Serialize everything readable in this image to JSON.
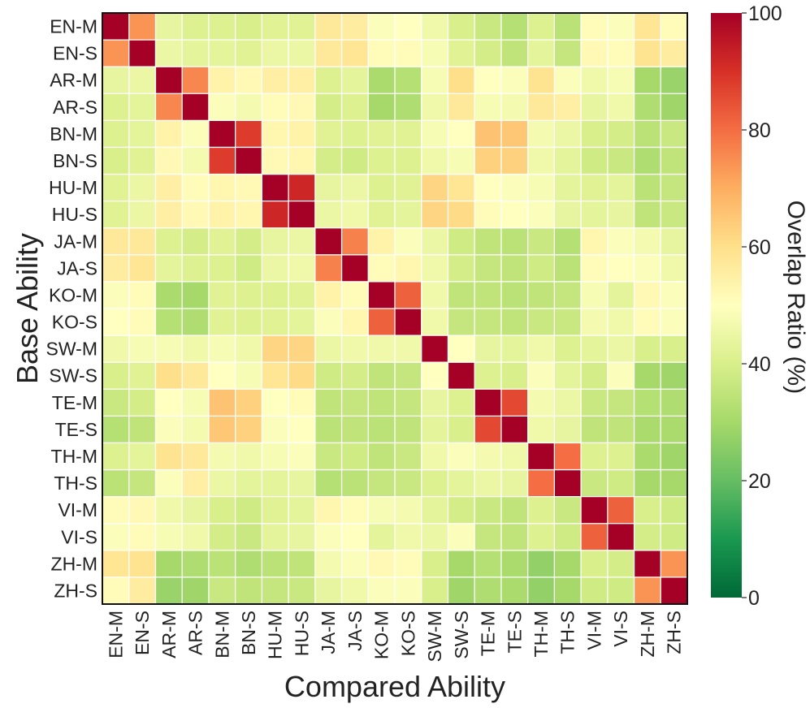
{
  "chart_data": {
    "type": "heatmap",
    "title": "",
    "xlabel": "Compared Ability",
    "ylabel": "Base Ability",
    "x_categories": [
      "EN-M",
      "EN-S",
      "AR-M",
      "AR-S",
      "BN-M",
      "BN-S",
      "HU-M",
      "HU-S",
      "JA-M",
      "JA-S",
      "KO-M",
      "KO-S",
      "SW-M",
      "SW-S",
      "TE-M",
      "TE-S",
      "TH-M",
      "TH-S",
      "VI-M",
      "VI-S",
      "ZH-M",
      "ZH-S"
    ],
    "y_categories": [
      "EN-M",
      "EN-S",
      "AR-M",
      "AR-S",
      "BN-M",
      "BN-S",
      "HU-M",
      "HU-S",
      "JA-M",
      "JA-S",
      "KO-M",
      "KO-S",
      "SW-M",
      "SW-S",
      "TE-M",
      "TE-S",
      "TH-M",
      "TH-S",
      "VI-M",
      "VI-S",
      "ZH-M",
      "ZH-S"
    ],
    "values": [
      [
        100,
        74,
        44,
        41,
        41,
        40,
        42,
        42,
        57,
        56,
        49,
        50,
        46,
        40,
        37,
        33,
        41,
        34,
        51,
        49,
        58,
        51
      ],
      [
        74,
        100,
        45,
        43,
        43,
        42,
        45,
        45,
        57,
        58,
        51,
        51,
        48,
        42,
        39,
        35,
        43,
        36,
        52,
        51,
        59,
        56
      ],
      [
        44,
        45,
        100,
        76,
        54,
        52,
        55,
        55,
        41,
        43,
        31,
        33,
        48,
        60,
        50,
        49,
        59,
        49,
        46,
        48,
        30,
        28
      ],
      [
        41,
        43,
        76,
        100,
        49,
        47,
        51,
        52,
        39,
        41,
        30,
        32,
        46,
        57,
        48,
        47,
        57,
        55,
        44,
        46,
        32,
        29
      ],
      [
        41,
        43,
        54,
        49,
        100,
        88,
        53,
        54,
        42,
        41,
        42,
        42,
        48,
        50,
        66,
        65,
        47,
        45,
        40,
        39,
        34,
        37
      ],
      [
        40,
        42,
        52,
        47,
        88,
        100,
        52,
        53,
        39,
        38,
        41,
        41,
        46,
        48,
        63,
        63,
        46,
        43,
        38,
        37,
        32,
        35
      ],
      [
        42,
        45,
        55,
        51,
        53,
        52,
        100,
        92,
        44,
        45,
        41,
        42,
        62,
        58,
        50,
        49,
        48,
        43,
        42,
        43,
        34,
        36
      ],
      [
        42,
        45,
        55,
        52,
        54,
        53,
        92,
        100,
        45,
        46,
        42,
        43,
        62,
        61,
        51,
        50,
        49,
        44,
        43,
        44,
        35,
        37
      ],
      [
        57,
        57,
        41,
        39,
        42,
        39,
        44,
        45,
        100,
        77,
        54,
        49,
        45,
        38,
        35,
        34,
        37,
        33,
        53,
        49,
        47,
        44
      ],
      [
        56,
        58,
        43,
        41,
        41,
        38,
        45,
        46,
        77,
        100,
        51,
        53,
        46,
        39,
        36,
        35,
        38,
        34,
        51,
        50,
        49,
        46
      ],
      [
        49,
        51,
        31,
        30,
        42,
        41,
        41,
        42,
        54,
        51,
        100,
        82,
        46,
        35,
        35,
        34,
        35,
        36,
        48,
        43,
        52,
        49
      ],
      [
        50,
        51,
        33,
        32,
        42,
        41,
        42,
        43,
        49,
        53,
        82,
        100,
        46,
        36,
        36,
        35,
        37,
        37,
        47,
        46,
        51,
        49
      ],
      [
        46,
        48,
        48,
        46,
        48,
        46,
        62,
        62,
        45,
        46,
        46,
        46,
        100,
        50,
        44,
        43,
        46,
        41,
        43,
        45,
        40,
        40
      ],
      [
        40,
        42,
        60,
        57,
        50,
        48,
        58,
        61,
        38,
        39,
        35,
        36,
        50,
        100,
        41,
        40,
        49,
        43,
        39,
        49,
        30,
        29
      ],
      [
        37,
        39,
        50,
        48,
        66,
        63,
        50,
        51,
        35,
        36,
        35,
        36,
        44,
        41,
        100,
        86,
        47,
        45,
        37,
        36,
        33,
        32
      ],
      [
        33,
        35,
        49,
        47,
        65,
        63,
        49,
        50,
        34,
        35,
        34,
        35,
        43,
        40,
        86,
        100,
        46,
        44,
        35,
        35,
        31,
        31
      ],
      [
        41,
        43,
        59,
        57,
        47,
        46,
        48,
        49,
        37,
        38,
        35,
        37,
        46,
        49,
        47,
        46,
        100,
        80,
        41,
        41,
        31,
        29
      ],
      [
        34,
        36,
        49,
        55,
        45,
        43,
        43,
        44,
        33,
        34,
        36,
        37,
        41,
        43,
        45,
        44,
        80,
        100,
        37,
        38,
        30,
        30
      ],
      [
        51,
        52,
        46,
        44,
        40,
        38,
        42,
        43,
        53,
        51,
        48,
        47,
        43,
        39,
        37,
        35,
        41,
        37,
        100,
        82,
        40,
        38
      ],
      [
        49,
        51,
        48,
        46,
        39,
        37,
        43,
        44,
        49,
        50,
        43,
        46,
        45,
        49,
        36,
        35,
        41,
        38,
        82,
        100,
        39,
        38
      ],
      [
        58,
        59,
        30,
        32,
        34,
        32,
        34,
        35,
        47,
        49,
        52,
        51,
        40,
        30,
        33,
        31,
        27,
        30,
        40,
        39,
        100,
        74
      ],
      [
        51,
        56,
        28,
        29,
        37,
        35,
        36,
        37,
        44,
        46,
        49,
        49,
        40,
        29,
        32,
        31,
        27,
        30,
        38,
        38,
        74,
        100
      ]
    ],
    "vmin": 0,
    "vmax": 100,
    "colormap": "RdYlGn_r",
    "colorbar": {
      "label": "Overlap Ratio (%)",
      "ticks": [
        0,
        20,
        40,
        60,
        80,
        100
      ]
    }
  }
}
